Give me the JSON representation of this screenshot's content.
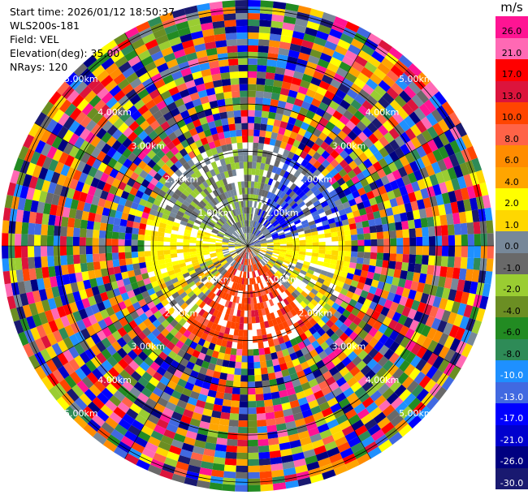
{
  "header": {
    "start_time": "Start time: 2026/01/12 18:50:37",
    "instrument": "WLS200s-181",
    "field": "Field: VEL",
    "elevation": "Elevation(deg): 35.00",
    "nrays": "NRays: 120"
  },
  "colorbar": {
    "unit": "m/s",
    "bands": [
      "#ff1493",
      "#ff69b4",
      "#ff0000",
      "#dc143c",
      "#ff4500",
      "#ff6347",
      "#ff8c00",
      "#ffa500",
      "#ffff00",
      "#ffd700",
      "#778899",
      "#696969",
      "#9acd32",
      "#6b8e23",
      "#228b22",
      "#2e8b57",
      "#1e90ff",
      "#4169e1",
      "#0000ff",
      "#0000cd",
      "#000080",
      "#191970"
    ],
    "ticks": [
      "26.0",
      "21.0",
      "17.0",
      "13.0",
      "10.0",
      "8.0",
      "6.0",
      "4.0",
      "2.0",
      "1.0",
      "0.0",
      "-1.0",
      "-2.0",
      "-4.0",
      "-6.0",
      "-8.0",
      "-10.0",
      "-13.0",
      "-17.0",
      "-21.0",
      "-26.0",
      "-30.0"
    ]
  },
  "rings": {
    "labels": [
      "1.00km",
      "2.00km",
      "3.00km",
      "4.00km",
      "5.00km"
    ]
  }
}
